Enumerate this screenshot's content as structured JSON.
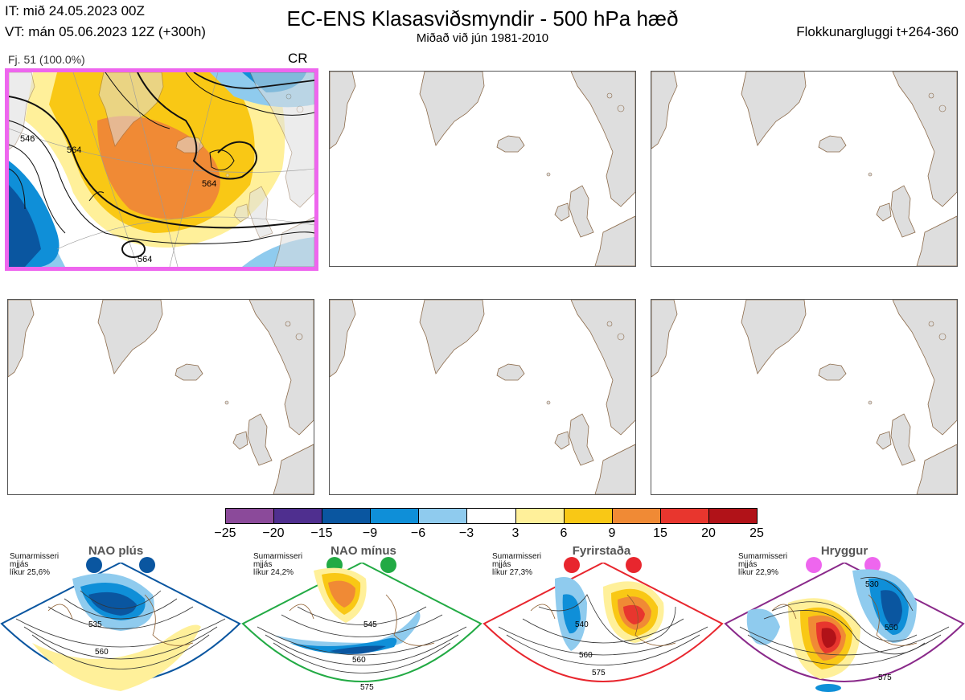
{
  "header": {
    "it_line": "IT: mið 24.05.2023 00Z",
    "vt_line": "VT: mán 05.06.2023 12Z  (+300h)",
    "title": "EC-ENS Klasasviðsmyndir - 500 hPa hæð",
    "subtitle": "Miðað við jún 1981-2010",
    "window": "Flokkunargluggi t+264-360"
  },
  "panel_1": {
    "member_label": "Fj. 51 (100.0%)",
    "class_code": "CR",
    "contour_labels": [
      "546",
      "564",
      "564",
      "564"
    ]
  },
  "empty_panels_count": 5,
  "colorbar": {
    "colors": [
      "#8b4a9a",
      "#4f2f8f",
      "#0a56a0",
      "#0f8fd8",
      "#8fcbee",
      "#ffffff",
      "#fff09a",
      "#f9c815",
      "#f08a35",
      "#e8362e",
      "#b11218"
    ],
    "ticks": [
      "−25",
      "−20",
      "−15",
      "−9",
      "−6",
      "−3",
      "3",
      "6",
      "9",
      "15",
      "20",
      "25"
    ]
  },
  "climate_regimes": [
    {
      "name": "NAO plús",
      "season": "Sumarmisseri",
      "mean": "mjjás",
      "prob": "líkur 25,6%",
      "color": "#0a56a0",
      "labels": [
        "535",
        "560"
      ]
    },
    {
      "name": "NAO mínus",
      "season": "Sumarmisseri",
      "mean": "mjjás",
      "prob": "líkur 24,2%",
      "color": "#22aa44",
      "labels": [
        "545",
        "560",
        "575"
      ]
    },
    {
      "name": "Fyrirstaða",
      "season": "Sumarmisseri",
      "mean": "mjjás",
      "prob": "líkur 27,3%",
      "color": "#e8262e",
      "labels": [
        "540",
        "560",
        "575"
      ]
    },
    {
      "name": "Hryggur",
      "season": "Sumarmisseri",
      "mean": "mjjás",
      "prob": "líkur 22,9%",
      "color": "#ee66ee",
      "labels": [
        "530",
        "550",
        "575"
      ]
    }
  ]
}
